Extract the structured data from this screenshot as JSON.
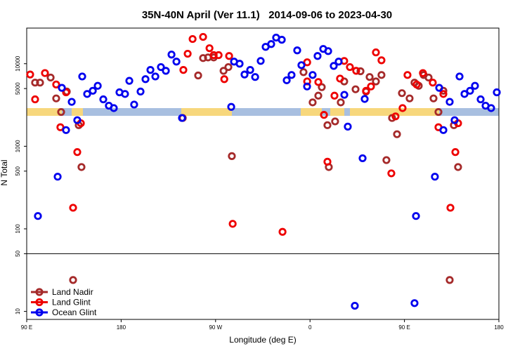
{
  "chart_data": {
    "type": "scatter",
    "title": "35N-40N April (Ver 11.1)   2014-09-06 to 2023-04-30",
    "x_label": "Longitude (deg E)",
    "y_label": "N Total",
    "xlim": [
      90,
      540
    ],
    "xticks": [
      {
        "value": 90,
        "label": "90 E"
      },
      {
        "value": 180,
        "label": "180"
      },
      {
        "value": 270,
        "label": "90 W"
      },
      {
        "value": 360,
        "label": "0"
      },
      {
        "value": 450,
        "label": "90 E"
      },
      {
        "value": 540,
        "label": "180"
      }
    ],
    "ylim": [
      8,
      27000
    ],
    "yticks": [
      10,
      50,
      100,
      500,
      1000,
      5000,
      10000
    ],
    "log_y": true,
    "panel_split": 50,
    "legend": "bottom left",
    "series": [
      {
        "name": "Land Nadir",
        "color": "#a52a2a",
        "x": [
          98.0,
          102.7,
          112.8,
          118.1,
          122.8,
          128.2,
          134.2,
          139.6,
          142.2,
          238.7,
          253.4,
          258.1,
          262.8,
          268.2,
          277.6,
          282.2,
          285.5,
          353.8,
          362.5,
          367.9,
          371.2,
          376.6,
          377.9,
          383.9,
          389.3,
          392.6,
          403.4,
          408.1,
          413.4,
          416.8,
          422.8,
          428.1,
          432.8,
          438.2,
          442.9,
          447.6,
          454.9,
          459.6,
          463.6,
          468.3,
          473.0,
          477.7,
          482.4,
          487.1,
          493.1,
          497.1,
          501.1
        ],
        "values": [
          5900,
          5900,
          6800,
          3800,
          2600,
          4600,
          24,
          1800,
          560,
          2200,
          7200,
          11700,
          11900,
          11900,
          8200,
          9100,
          760,
          7900,
          3400,
          4100,
          5200,
          1800,
          560,
          2000,
          3400,
          6100,
          4900,
          8100,
          4600,
          6900,
          6100,
          7300,
          680,
          2200,
          1400,
          4400,
          3800,
          5900,
          5400,
          7300,
          6800,
          3800,
          2600,
          4700,
          24,
          1800,
          560
        ]
      },
      {
        "name": "Land Glint",
        "color": "#ee0000",
        "x": [
          93.3,
          98.0,
          107.4,
          118.1,
          127.5,
          122.1,
          138.2,
          134.2,
          141.6,
          239.3,
          243.4,
          248.1,
          258.1,
          264.2,
          268.2,
          272.9,
          278.3,
          282.9,
          286.3,
          333.8,
          357.3,
          357.3,
          367.9,
          373.3,
          376.6,
          383.3,
          388.6,
          392.6,
          398.0,
          404.0,
          413.4,
          418.1,
          422.8,
          428.1,
          437.5,
          441.5,
          448.2,
          452.9,
          461.6,
          467.6,
          477.0,
          482.4,
          487.1,
          493.8,
          498.5,
          501.1
        ],
        "values": [
          7400,
          3700,
          7700,
          5600,
          4500,
          1700,
          850,
          180,
          1900,
          8400,
          13200,
          19900,
          21100,
          15400,
          12700,
          12700,
          6500,
          12400,
          115,
          92,
          10400,
          6100,
          6000,
          2400,
          650,
          4100,
          6600,
          10800,
          9100,
          8200,
          4700,
          5300,
          13700,
          11000,
          470,
          2300,
          2900,
          7300,
          5600,
          7700,
          5900,
          1700,
          4300,
          180,
          850,
          1900
        ]
      },
      {
        "name": "Ocean Glint",
        "color": "#0000ee",
        "x": [
          100.7,
          119.5,
          123.5,
          127.5,
          132.9,
          138.2,
          142.9,
          147.6,
          153.0,
          157.7,
          163.0,
          168.3,
          173.0,
          178.4,
          183.7,
          187.8,
          192.4,
          198.5,
          203.2,
          207.9,
          212.6,
          217.9,
          222.6,
          228.0,
          232.7,
          238.0,
          284.9,
          287.6,
          292.9,
          297.6,
          303.0,
          307.7,
          313.0,
          317.7,
          323.0,
          327.7,
          333.1,
          337.8,
          342.4,
          347.8,
          351.8,
          357.2,
          362.5,
          367.2,
          372.6,
          377.3,
          382.6,
          387.3,
          392.7,
          396.0,
          402.7,
          410.1,
          412.1,
          459.6,
          461.0,
          479.0,
          483.1,
          487.1,
          493.1,
          497.8,
          502.5,
          507.2,
          512.5,
          517.2,
          522.6,
          527.3,
          532.6,
          538.0
        ],
        "values": [
          143,
          428,
          5100,
          1570,
          3450,
          2070,
          7000,
          4300,
          4700,
          5400,
          3700,
          3100,
          2900,
          4500,
          4300,
          6200,
          3200,
          4600,
          6500,
          8400,
          7000,
          9100,
          8200,
          12900,
          10600,
          2200,
          3000,
          10600,
          10000,
          7400,
          8400,
          6900,
          10800,
          16000,
          17300,
          20700,
          19500,
          6300,
          7300,
          14500,
          9600,
          5300,
          7300,
          12400,
          15100,
          14200,
          9400,
          10600,
          4200,
          1730,
          11.7,
          716,
          3740,
          12.6,
          143,
          428,
          5100,
          1570,
          3450,
          2070,
          7000,
          4300,
          4700,
          5400,
          3700,
          3100,
          2900,
          4500
        ]
      }
    ]
  }
}
